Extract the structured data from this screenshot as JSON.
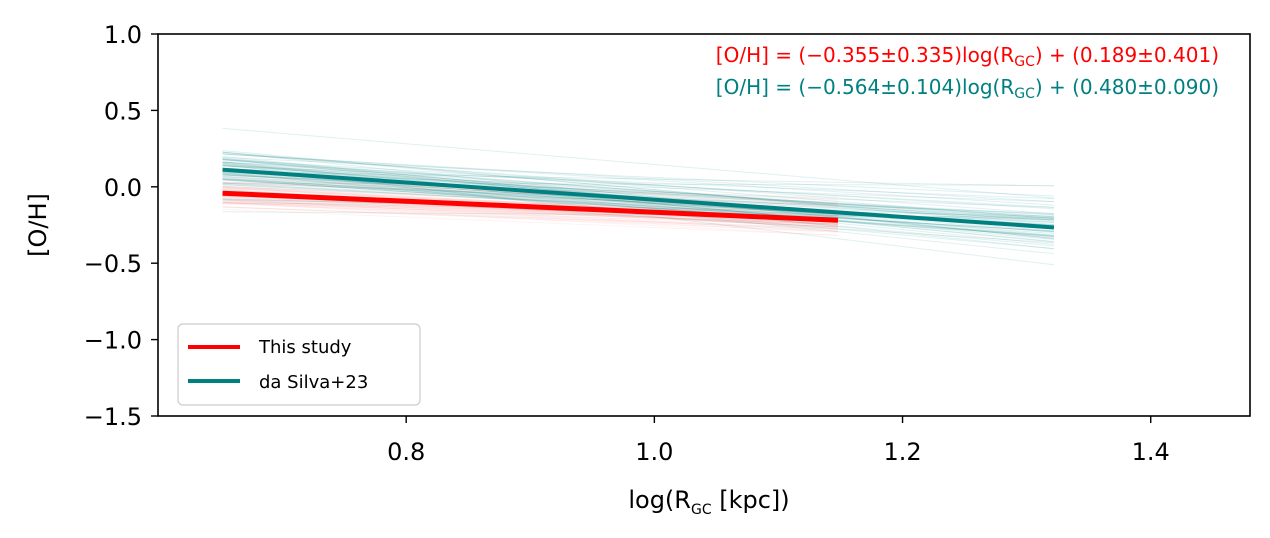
{
  "chart_data": {
    "type": "line",
    "xlabel_main": "log(R",
    "xlabel_sub": "GC",
    "xlabel_tail": " [kpc])",
    "ylabel": "[O/H]",
    "xlim": [
      0.6,
      1.48
    ],
    "ylim": [
      -1.5,
      1.0
    ],
    "x_ticks": [
      0.8,
      1.0,
      1.2,
      1.4
    ],
    "x_tick_labels": [
      "0.8",
      "1.0",
      "1.2",
      "1.4"
    ],
    "y_ticks": [
      1.0,
      0.5,
      0.0,
      -0.5,
      -1.0,
      -1.5
    ],
    "y_tick_labels": [
      "1.0",
      "0.5",
      "0.0",
      "−0.5",
      "−1.0",
      "−1.5"
    ],
    "series": [
      {
        "name": "This study",
        "color": "#ff0000",
        "x": [
          0.652,
          1.148
        ],
        "y": [
          -0.042,
          -0.219
        ],
        "slope": -0.355,
        "slope_err": 0.335,
        "intercept": 0.189,
        "intercept_err": 0.401
      },
      {
        "name": "da Silva+23",
        "color": "#008080",
        "x": [
          0.652,
          1.322
        ],
        "y": [
          0.112,
          -0.266
        ],
        "slope": -0.564,
        "slope_err": 0.104,
        "intercept": 0.48,
        "intercept_err": 0.09
      }
    ],
    "equations": [
      {
        "color": "#ff0000",
        "a": "[O/H] = (−0.355±0.335)log(R",
        "sub": "GC",
        "b": ") + (0.189±0.401)"
      },
      {
        "color": "#008080",
        "a": "[O/H] = (−0.564±0.104)log(R",
        "sub": "GC",
        "b": ") + (0.480±0.090)"
      }
    ],
    "legend": {
      "location": "lower-left",
      "entries": [
        {
          "label": "This study",
          "color": "#ff0000"
        },
        {
          "label": "da Silva+23",
          "color": "#008080"
        }
      ]
    }
  }
}
